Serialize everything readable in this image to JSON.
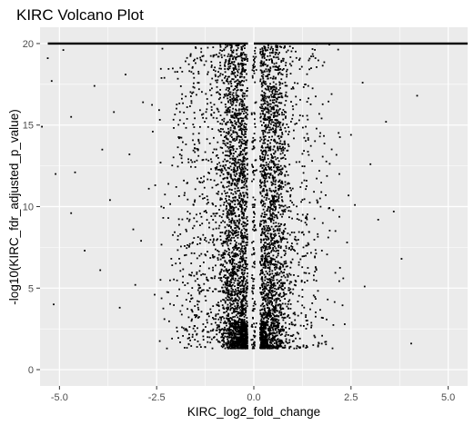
{
  "chart_data": {
    "type": "scatter",
    "title": "KIRC Volcano Plot",
    "xlabel": "KIRC_log2_fold_change",
    "ylabel": "-log10(KIRC_fdr_adjusted_p_value)",
    "xlim": [
      -5.5,
      5.5
    ],
    "ylim": [
      -1.0,
      21.0
    ],
    "x_ticks": [
      -5.0,
      -2.5,
      0.0,
      2.5,
      5.0
    ],
    "x_tick_labels": [
      "-5.0",
      "-2.5",
      "0.0",
      "2.5",
      "5.0"
    ],
    "y_ticks": [
      0,
      5,
      10,
      15,
      20
    ],
    "y_tick_labels": [
      "0",
      "5",
      "10",
      "15",
      "20"
    ],
    "y_cap": 20,
    "grid": true,
    "legend": "none",
    "colors": {
      "panel": "#ebebeb",
      "grid_major": "#ffffff",
      "point": "#000000",
      "tick_label": "#4d4d4d"
    },
    "series": [
      {
        "points": [
          [
            -5.3,
            19.1
          ],
          [
            -5.2,
            17.7
          ],
          [
            -5.1,
            12.0
          ],
          [
            -5.45,
            14.9
          ],
          [
            -4.9,
            19.6
          ],
          [
            -4.7,
            15.5
          ],
          [
            -4.6,
            12.1
          ],
          [
            -4.35,
            7.3
          ],
          [
            -4.7,
            9.6
          ],
          [
            -5.15,
            4.0
          ],
          [
            -4.1,
            17.4
          ],
          [
            -3.9,
            13.5
          ],
          [
            -3.7,
            10.4
          ],
          [
            -3.95,
            6.1
          ],
          [
            -3.6,
            15.8
          ],
          [
            -3.3,
            18.1
          ],
          [
            -3.2,
            13.2
          ],
          [
            -3.1,
            8.6
          ],
          [
            -3.45,
            3.8
          ],
          [
            -3.05,
            5.2
          ],
          [
            -2.85,
            16.4
          ],
          [
            -2.7,
            11.1
          ],
          [
            -2.9,
            7.9
          ],
          [
            -2.55,
            4.6
          ],
          [
            -2.6,
            14.6
          ],
          [
            -2.3,
            17.9
          ],
          [
            -2.2,
            9.3
          ],
          [
            -2.4,
            12.7
          ],
          [
            -2.1,
            6.4
          ],
          [
            -2.3,
            3.1
          ],
          [
            -1.9,
            15.3
          ],
          [
            -1.8,
            11.6
          ],
          [
            -1.95,
            8.2
          ],
          [
            -1.7,
            5.3
          ],
          [
            -1.85,
            2.6
          ],
          [
            -1.5,
            18.8
          ],
          [
            -1.4,
            13.9
          ],
          [
            -1.55,
            10.1
          ],
          [
            -1.35,
            7.1
          ],
          [
            -1.45,
            4.2
          ],
          [
            -1.2,
            16.6
          ],
          [
            -1.1,
            12.3
          ],
          [
            -1.15,
            9.0
          ],
          [
            -1.05,
            6.1
          ],
          [
            -1.2,
            3.4
          ],
          [
            -0.9,
            19.2
          ],
          [
            -0.85,
            14.6
          ],
          [
            -0.95,
            10.8
          ],
          [
            -0.8,
            7.6
          ],
          [
            -0.9,
            4.8
          ],
          [
            -0.65,
            17.1
          ],
          [
            -0.6,
            13.2
          ],
          [
            -0.7,
            9.9
          ],
          [
            -0.55,
            6.7
          ],
          [
            -0.6,
            3.9
          ],
          [
            -0.45,
            15.9
          ],
          [
            -0.4,
            11.7
          ],
          [
            -0.5,
            8.4
          ],
          [
            -0.35,
            5.6
          ],
          [
            -0.4,
            2.9
          ],
          [
            -0.3,
            18.4
          ],
          [
            -0.25,
            10.6
          ],
          [
            -0.28,
            7.2
          ],
          [
            -0.22,
            4.4
          ],
          [
            -0.2,
            2.1
          ],
          [
            0.25,
            17.7
          ],
          [
            0.28,
            12.9
          ],
          [
            0.3,
            9.1
          ],
          [
            0.22,
            5.9
          ],
          [
            0.26,
            2.4
          ],
          [
            0.4,
            19.0
          ],
          [
            0.45,
            14.1
          ],
          [
            0.42,
            10.3
          ],
          [
            0.5,
            7.0
          ],
          [
            0.38,
            3.6
          ],
          [
            0.6,
            16.2
          ],
          [
            0.65,
            12.4
          ],
          [
            0.58,
            8.8
          ],
          [
            0.7,
            5.5
          ],
          [
            0.62,
            2.8
          ],
          [
            0.85,
            18.1
          ],
          [
            0.9,
            13.7
          ],
          [
            0.8,
            9.7
          ],
          [
            0.95,
            6.6
          ],
          [
            0.88,
            3.3
          ],
          [
            1.1,
            15.1
          ],
          [
            1.2,
            11.2
          ],
          [
            1.05,
            8.0
          ],
          [
            1.25,
            4.9
          ],
          [
            1.15,
            2.2
          ],
          [
            1.4,
            17.4
          ],
          [
            1.5,
            12.8
          ],
          [
            1.35,
            9.4
          ],
          [
            1.6,
            6.2
          ],
          [
            1.45,
            3.7
          ],
          [
            1.7,
            14.3
          ],
          [
            1.85,
            10.7
          ],
          [
            1.75,
            7.3
          ],
          [
            1.9,
            4.3
          ],
          [
            2.0,
            16.9
          ],
          [
            2.2,
            12.0
          ],
          [
            2.1,
            8.5
          ],
          [
            2.3,
            5.6
          ],
          [
            2.5,
            14.4
          ],
          [
            2.6,
            10.1
          ],
          [
            2.4,
            7.8
          ],
          [
            2.8,
            17.6
          ],
          [
            2.85,
            5.1
          ],
          [
            3.0,
            12.6
          ],
          [
            3.2,
            9.2
          ],
          [
            3.6,
            9.7
          ],
          [
            3.4,
            15.2
          ],
          [
            4.2,
            16.8
          ],
          [
            4.05,
            1.6
          ],
          [
            3.8,
            6.8
          ]
        ],
        "dense_regions": [
          {
            "x_center": -0.45,
            "x_spread": 0.32,
            "y_min": 1.3,
            "y_max": 20,
            "count": 1900
          },
          {
            "x_center": 0.45,
            "x_spread": 0.32,
            "y_min": 1.3,
            "y_max": 20,
            "count": 1700
          },
          {
            "x_center": -1.2,
            "x_spread": 0.75,
            "y_min": 1.3,
            "y_max": 20,
            "count": 650
          },
          {
            "x_center": 1.1,
            "x_spread": 0.7,
            "y_min": 1.3,
            "y_max": 20,
            "count": 450
          },
          {
            "x_center": -0.1,
            "x_spread": 0.35,
            "y_min": 1.3,
            "y_max": 3.0,
            "count": 500
          },
          {
            "x_center": 0.0,
            "x_spread": 0.04,
            "y_min": 1.3,
            "y_max": 20,
            "count": 140
          }
        ],
        "capped_band": {
          "y": 20,
          "segments": [
            [
              -5.3,
              -0.15
            ],
            [
              0.0,
              5.5
            ]
          ]
        }
      }
    ]
  }
}
